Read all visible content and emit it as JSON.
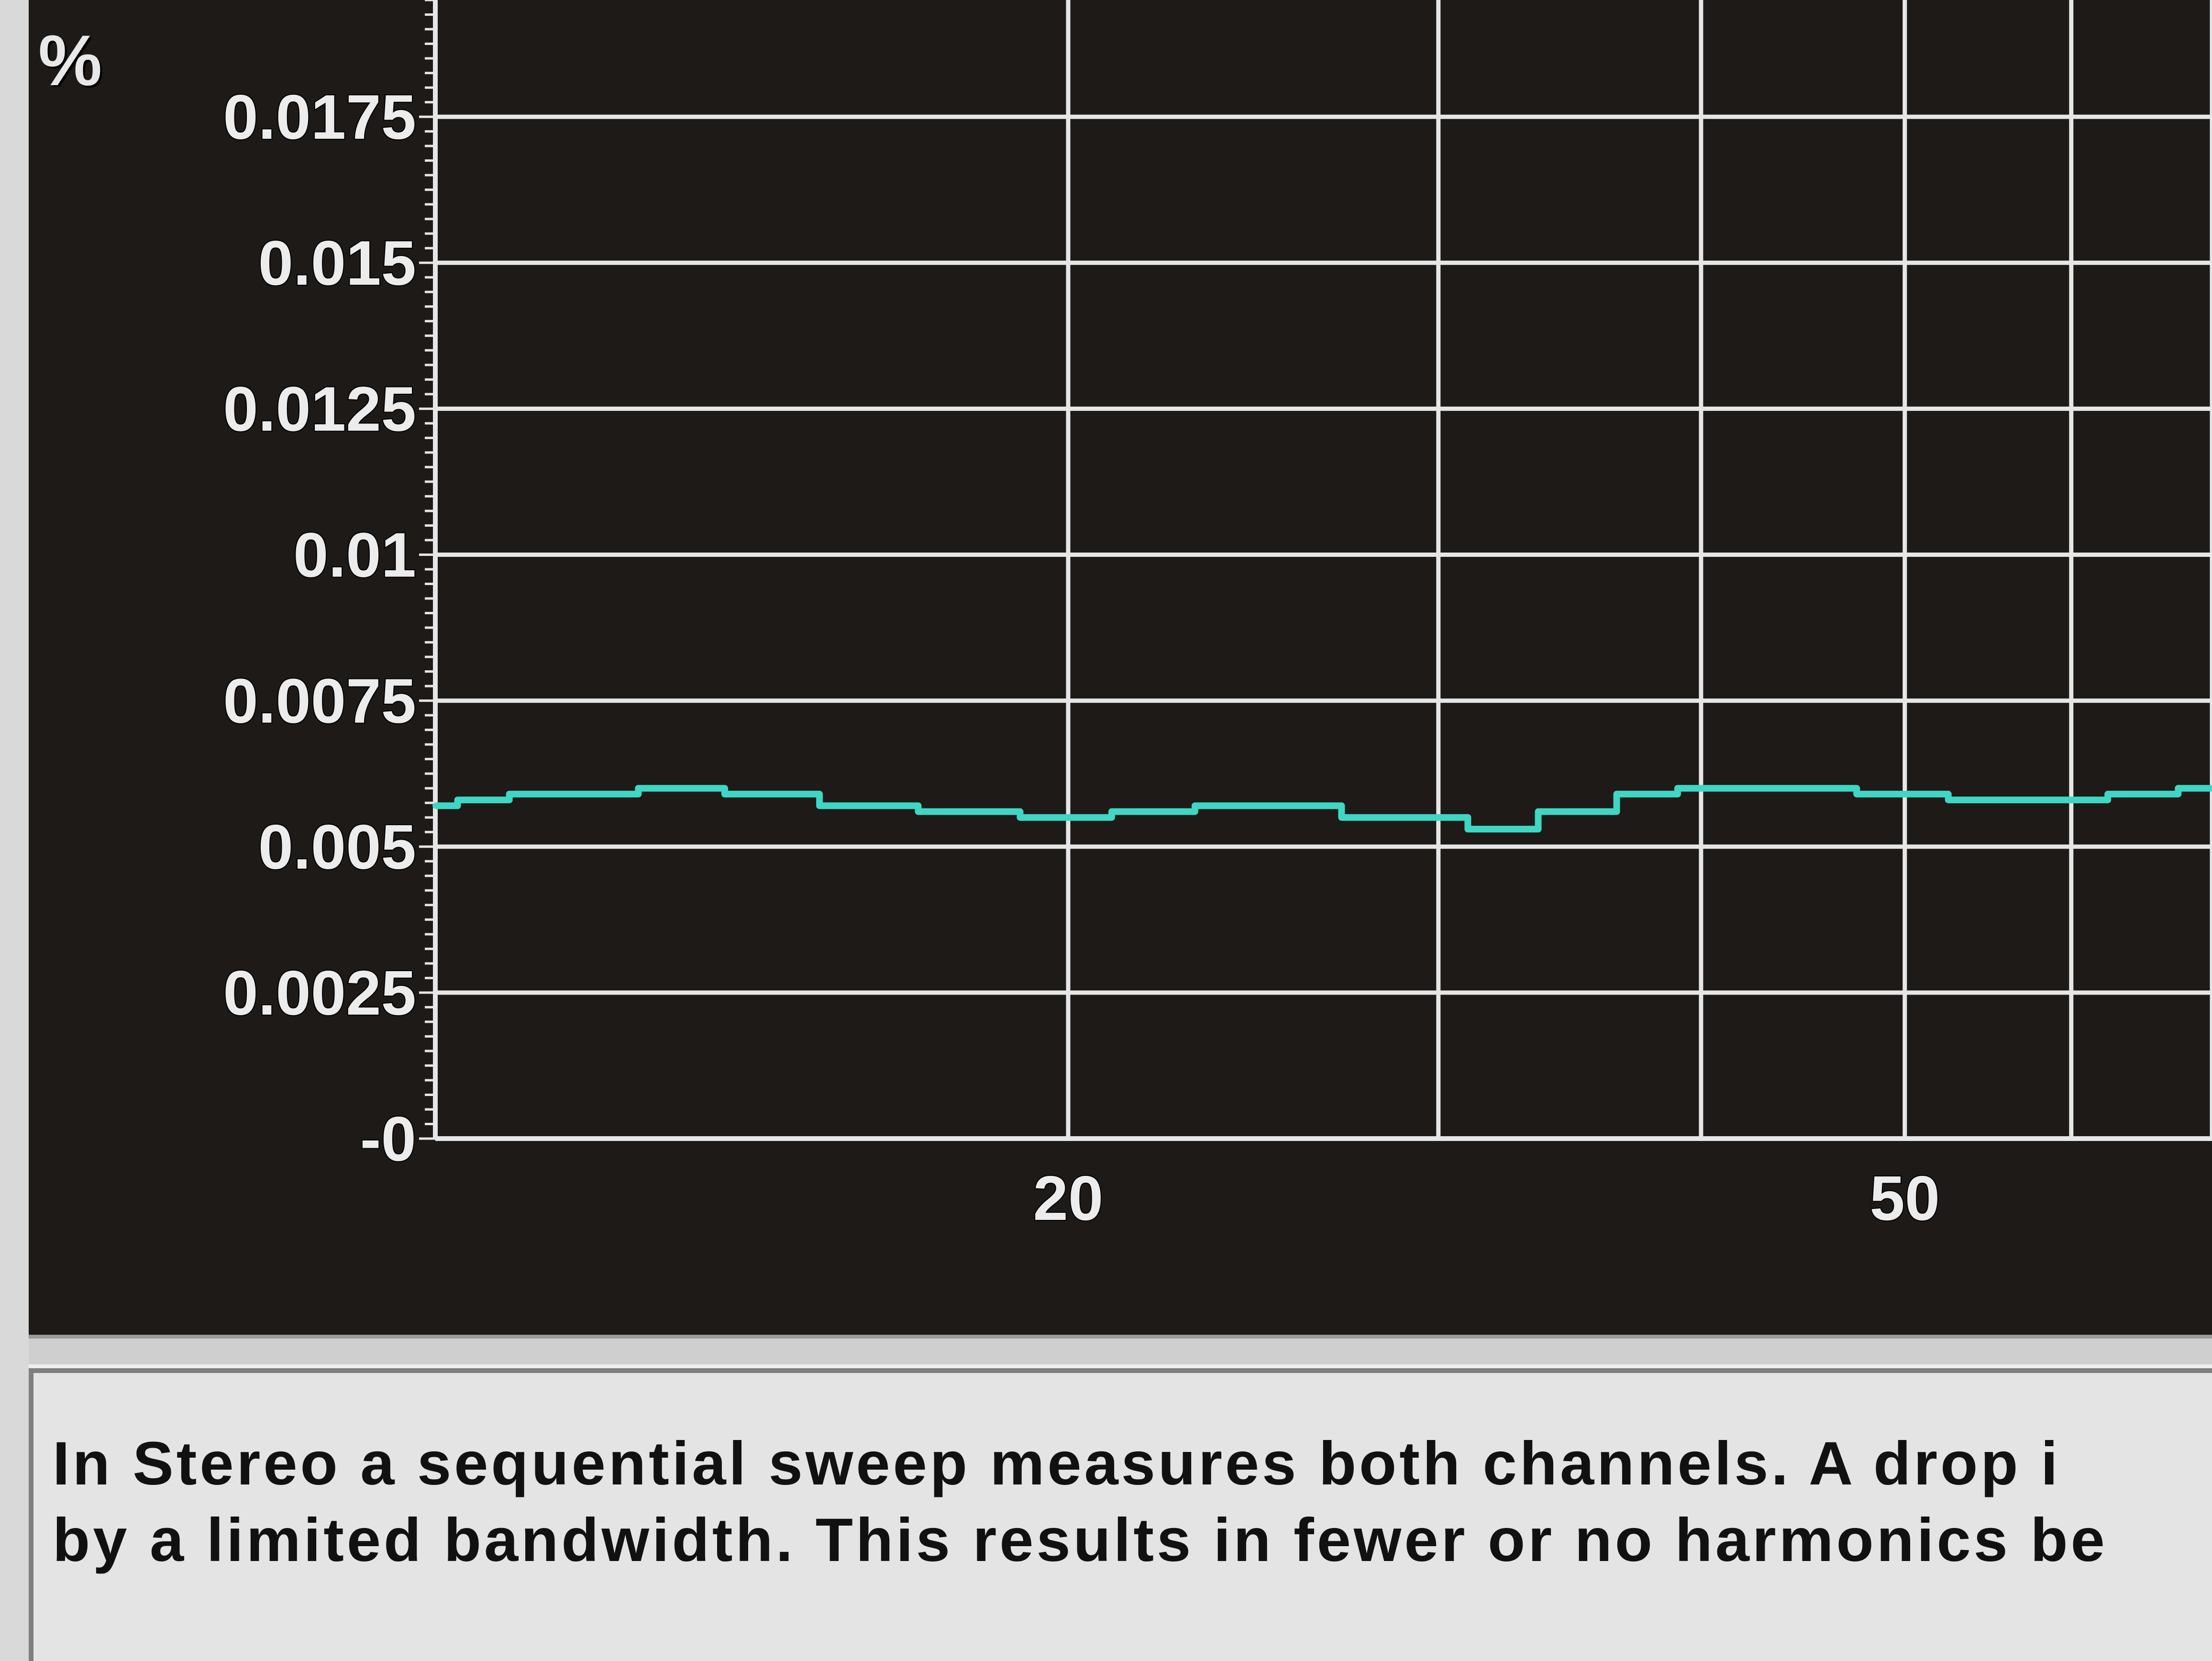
{
  "window": {
    "background": "#d9d9d9",
    "plot_background": "#1d1a17",
    "grid_color": "#e6e6e6",
    "trace_color": "#3fd6c4"
  },
  "chart_data": {
    "type": "line",
    "title": "",
    "xlabel": "",
    "ylabel": "%",
    "x_scale": "log",
    "xlim": [
      10,
      70
    ],
    "ylim": [
      0,
      0.0195
    ],
    "y_ticks": [
      {
        "value": 0,
        "label": "-0"
      },
      {
        "value": 0.0025,
        "label": "0.0025"
      },
      {
        "value": 0.005,
        "label": "0.005"
      },
      {
        "value": 0.0075,
        "label": "0.0075"
      },
      {
        "value": 0.01,
        "label": "0.01"
      },
      {
        "value": 0.0125,
        "label": "0.0125"
      },
      {
        "value": 0.015,
        "label": "0.015"
      },
      {
        "value": 0.0175,
        "label": "0.0175"
      }
    ],
    "x_gridlines": [
      20,
      30,
      40,
      50,
      60,
      70
    ],
    "x_ticks": [
      {
        "value": 20,
        "label": "20"
      },
      {
        "value": 50,
        "label": "50"
      }
    ],
    "grid": true,
    "series": [
      {
        "x": [
          10,
          10.5,
          11.2,
          12,
          13,
          14.5,
          16,
          18,
          20,
          22,
          24,
          26,
          28,
          30,
          32,
          35,
          38,
          40,
          45,
          50,
          55,
          60,
          65,
          70
        ],
        "y": [
          0.0057,
          0.0058,
          0.0059,
          0.0059,
          0.006,
          0.0059,
          0.0057,
          0.0056,
          0.0055,
          0.0056,
          0.0057,
          0.0057,
          0.0055,
          0.0055,
          0.0053,
          0.0056,
          0.0059,
          0.006,
          0.006,
          0.0059,
          0.0058,
          0.0058,
          0.0059,
          0.006
        ]
      }
    ]
  },
  "description": {
    "line1": "In Stereo a sequential sweep measures both channels.  A drop i",
    "line2": "by a limited bandwidth.  This results in fewer or no harmonics be"
  }
}
